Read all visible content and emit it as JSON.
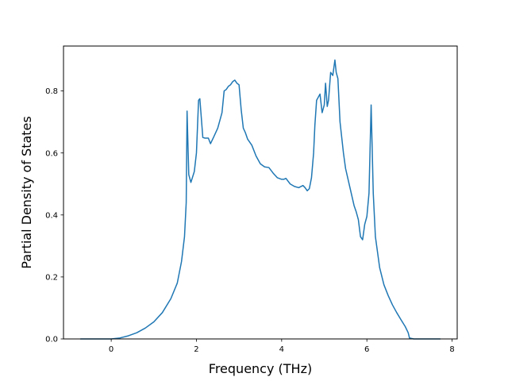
{
  "chart_data": {
    "type": "line",
    "title": "",
    "xlabel": "Frequency (THz)",
    "ylabel": "Partial Density of States",
    "xlim": [
      -1.12,
      8.12
    ],
    "ylim": [
      0.0,
      0.945
    ],
    "xticks": [
      0,
      2,
      4,
      6,
      8
    ],
    "xtick_labels": [
      "0",
      "2",
      "4",
      "6",
      "8"
    ],
    "yticks": [
      0.0,
      0.2,
      0.4,
      0.6,
      0.8
    ],
    "ytick_labels": [
      "0.0",
      "0.2",
      "0.4",
      "0.6",
      "0.8"
    ],
    "grid": false,
    "legend": "none",
    "series": [
      {
        "color": "#1f77b4",
        "x": [
          -0.72,
          0.0,
          0.2,
          0.4,
          0.6,
          0.8,
          1.0,
          1.2,
          1.4,
          1.55,
          1.65,
          1.72,
          1.76,
          1.78,
          1.82,
          1.87,
          1.95,
          2.0,
          2.05,
          2.08,
          2.15,
          2.2,
          2.28,
          2.33,
          2.4,
          2.5,
          2.6,
          2.65,
          2.7,
          2.75,
          2.8,
          2.85,
          2.9,
          2.95,
          3.0,
          3.05,
          3.1,
          3.15,
          3.2,
          3.3,
          3.4,
          3.5,
          3.6,
          3.7,
          3.8,
          3.9,
          4.0,
          4.05,
          4.1,
          4.2,
          4.3,
          4.4,
          4.5,
          4.55,
          4.6,
          4.65,
          4.7,
          4.75,
          4.78,
          4.82,
          4.86,
          4.9,
          4.95,
          5.0,
          5.03,
          5.07,
          5.1,
          5.15,
          5.2,
          5.25,
          5.28,
          5.32,
          5.37,
          5.45,
          5.5,
          5.6,
          5.7,
          5.75,
          5.8,
          5.85,
          5.9,
          5.95,
          6.0,
          6.05,
          6.1,
          6.15,
          6.2,
          6.3,
          6.4,
          6.5,
          6.6,
          6.7,
          6.8,
          6.9,
          6.97,
          7.0,
          7.1,
          7.5,
          7.72
        ],
        "y": [
          0.0,
          0.0,
          0.003,
          0.01,
          0.02,
          0.035,
          0.055,
          0.085,
          0.13,
          0.18,
          0.25,
          0.33,
          0.44,
          0.735,
          0.53,
          0.505,
          0.54,
          0.6,
          0.77,
          0.775,
          0.65,
          0.648,
          0.648,
          0.63,
          0.65,
          0.68,
          0.73,
          0.8,
          0.805,
          0.815,
          0.82,
          0.83,
          0.835,
          0.825,
          0.82,
          0.74,
          0.68,
          0.665,
          0.645,
          0.625,
          0.59,
          0.565,
          0.555,
          0.553,
          0.535,
          0.52,
          0.515,
          0.515,
          0.518,
          0.5,
          0.492,
          0.488,
          0.495,
          0.488,
          0.478,
          0.485,
          0.52,
          0.6,
          0.69,
          0.77,
          0.78,
          0.79,
          0.73,
          0.755,
          0.825,
          0.75,
          0.77,
          0.86,
          0.85,
          0.9,
          0.86,
          0.84,
          0.7,
          0.6,
          0.55,
          0.49,
          0.43,
          0.41,
          0.385,
          0.33,
          0.32,
          0.37,
          0.395,
          0.47,
          0.755,
          0.47,
          0.33,
          0.23,
          0.175,
          0.14,
          0.11,
          0.085,
          0.062,
          0.04,
          0.02,
          0.003,
          0.0,
          0.0,
          0.0
        ]
      }
    ]
  }
}
